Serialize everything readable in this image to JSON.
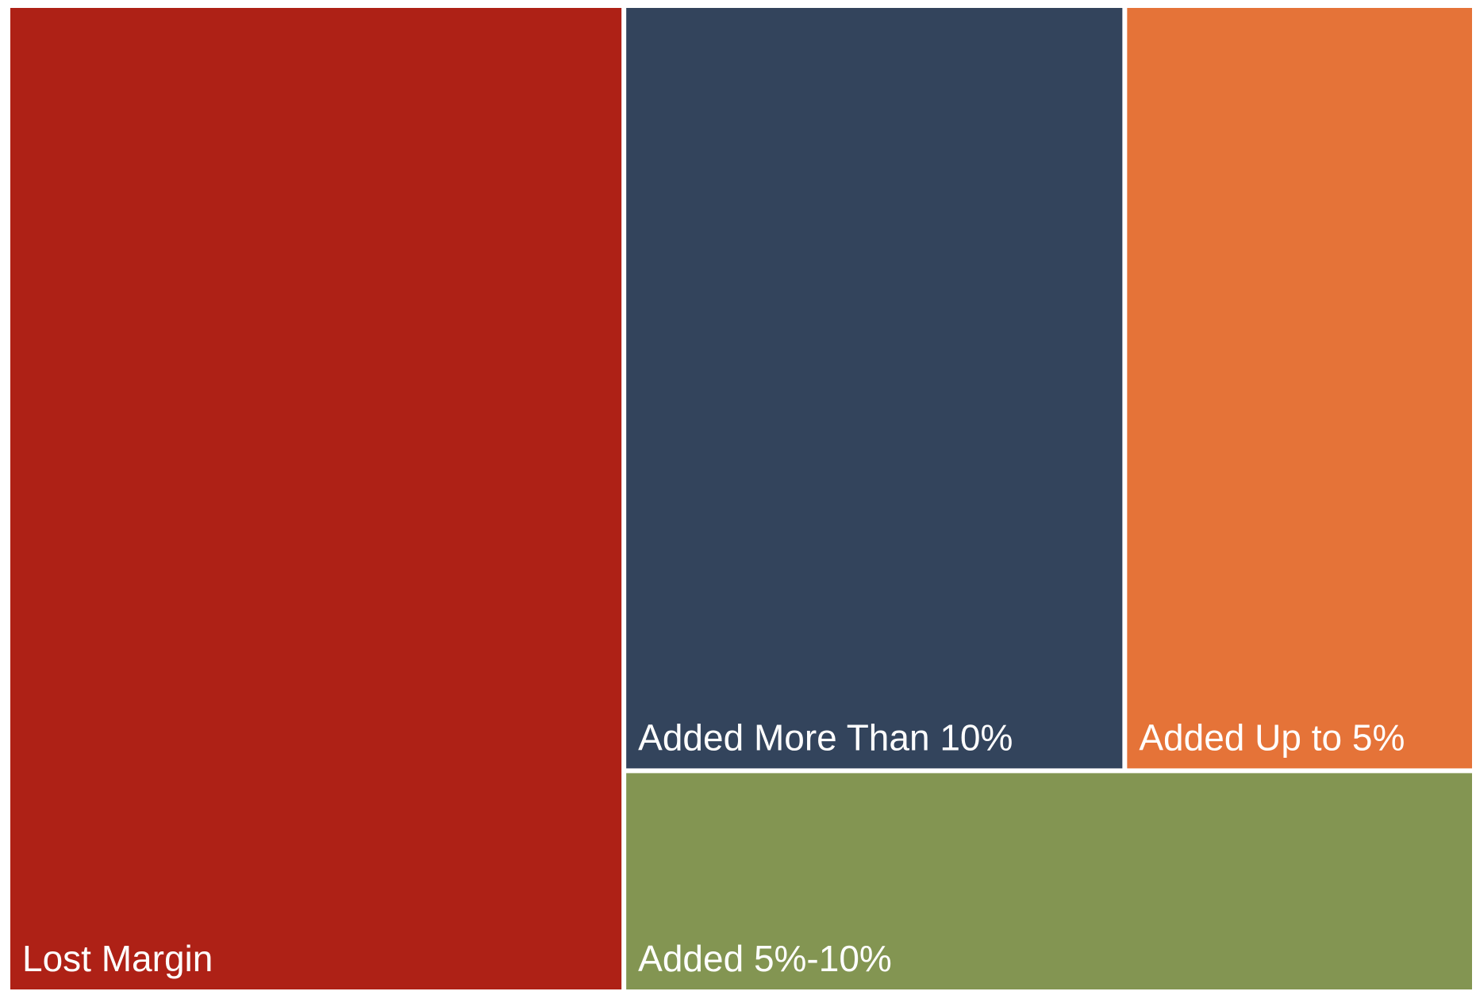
{
  "chart_data": {
    "type": "treemap",
    "categories": [
      "Lost Margin",
      "Added More Than 10%",
      "Added Up to 5%",
      "Added 5%-10%"
    ],
    "values": [
      42,
      26.5,
      18.5,
      13
    ],
    "colors": [
      "#ae2116",
      "#33445c",
      "#e57338",
      "#839552"
    ]
  }
}
